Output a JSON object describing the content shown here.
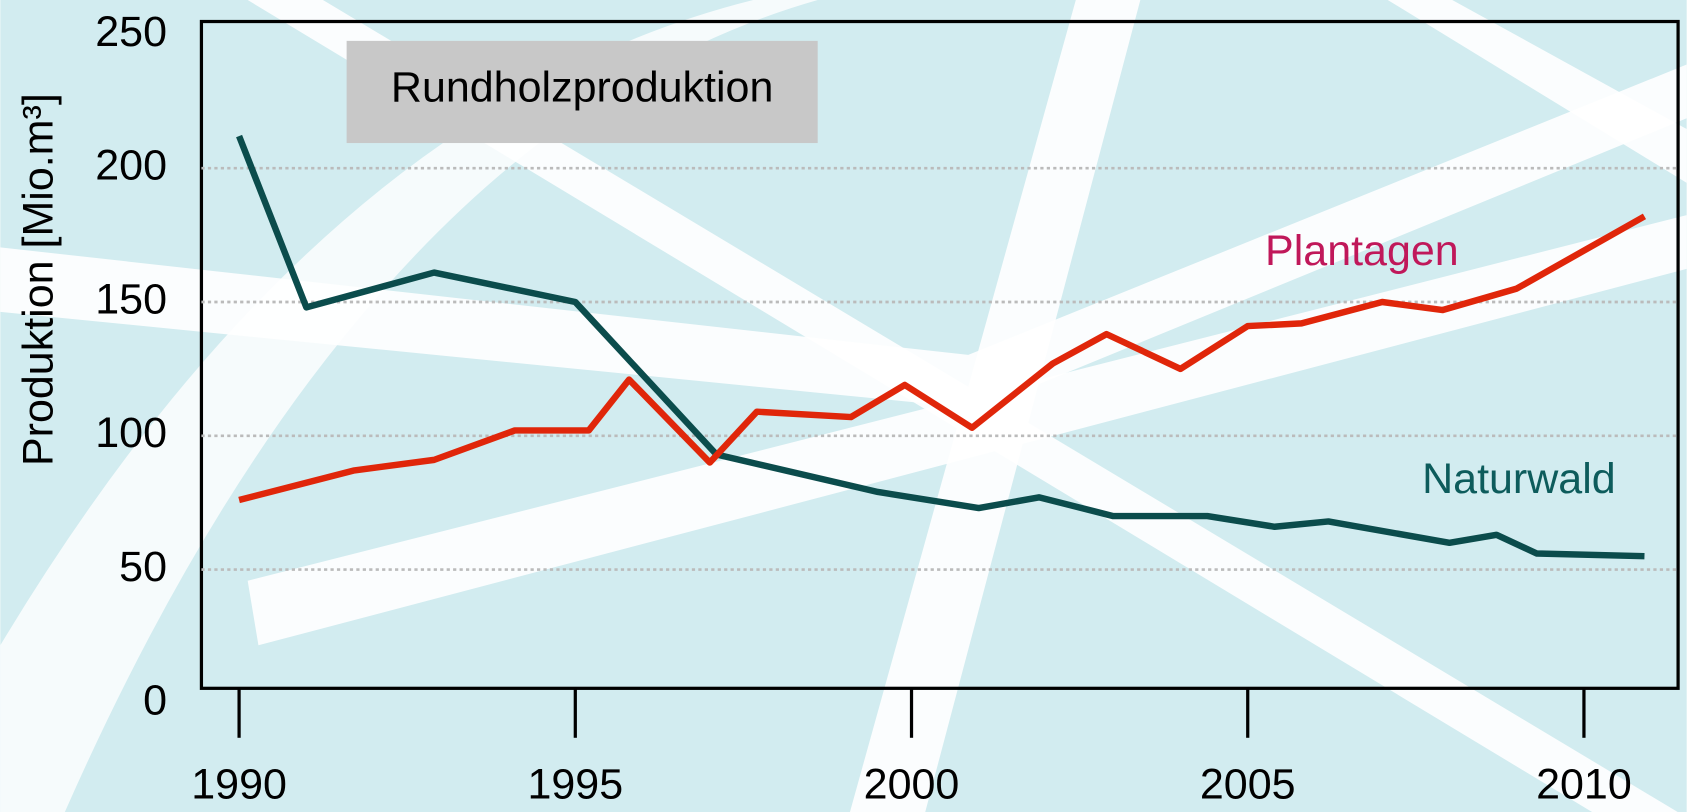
{
  "chart_data": {
    "type": "line",
    "title": "Rundholzproduktion",
    "y_label": "Produktion [Mio.m³]",
    "xlim": [
      1989.44,
      2011.4
    ],
    "xticks": [
      1990,
      1995,
      2000,
      2005,
      2010
    ],
    "ylim": [
      0,
      250
    ],
    "yticks": [
      0,
      50,
      100,
      150,
      200,
      250
    ],
    "grid": true,
    "series": [
      {
        "name": "Naturwald",
        "color": "#0b4c4c",
        "label_color": "#0d5c5c",
        "x": [
          1990.0,
          1991.0,
          1992.9,
          1995.0,
          1997.1,
          1999.5,
          2001.0,
          2001.9,
          2003.0,
          2004.4,
          2005.4,
          2006.2,
          2008.0,
          2008.7,
          2009.3,
          2010.9
        ],
        "values": [
          212,
          148,
          161,
          150,
          93,
          79,
          73,
          77,
          70,
          70,
          66,
          68,
          60,
          63,
          56,
          55
        ]
      },
      {
        "name": "Plantagen",
        "color": "#e0260a",
        "label_color": "#c0185a",
        "x": [
          1990.0,
          1991.7,
          1992.9,
          1994.1,
          1995.2,
          1995.8,
          1997.0,
          1997.7,
          1999.1,
          1999.9,
          2000.9,
          2002.1,
          2002.9,
          2004.0,
          2005.0,
          2005.8,
          2007.0,
          2007.9,
          2009.0,
          2010.9
        ],
        "values": [
          76,
          87,
          91,
          102,
          102,
          121,
          90,
          109,
          107,
          119,
          103,
          127,
          138,
          125,
          141,
          142,
          150,
          147,
          155,
          182
        ]
      }
    ]
  }
}
